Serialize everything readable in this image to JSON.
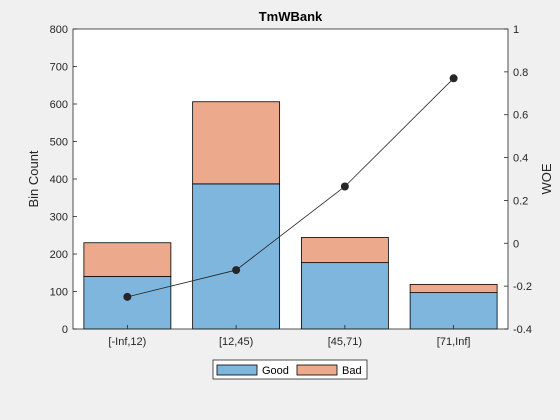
{
  "chart_data": {
    "type": "bar",
    "title": "TmWBank",
    "categories": [
      "[-Inf,12)",
      "[12,45)",
      "[45,71)",
      "[71,Inf]"
    ],
    "stacked": true,
    "series": [
      {
        "name": "Good",
        "values": [
          140,
          387,
          177,
          97
        ],
        "color": "#7eb6de"
      },
      {
        "name": "Bad",
        "values": [
          90,
          219,
          67,
          22
        ],
        "color": "#eda98b"
      }
    ],
    "ylabel": "Bin Count",
    "ylim": [
      0,
      800
    ],
    "yticks": [
      0,
      100,
      200,
      300,
      400,
      500,
      600,
      700,
      800
    ],
    "y2": {
      "name": "WOE",
      "ylabel": "WOE",
      "ylim": [
        -0.4,
        1
      ],
      "yticks": [
        "-0.4",
        "-0.2",
        "0",
        "0.2",
        "0.4",
        "0.6",
        "0.8",
        "1"
      ],
      "values": [
        -0.25,
        -0.125,
        0.265,
        0.77
      ],
      "color": "#262626"
    },
    "legend": "bottom-center",
    "grid": false
  }
}
